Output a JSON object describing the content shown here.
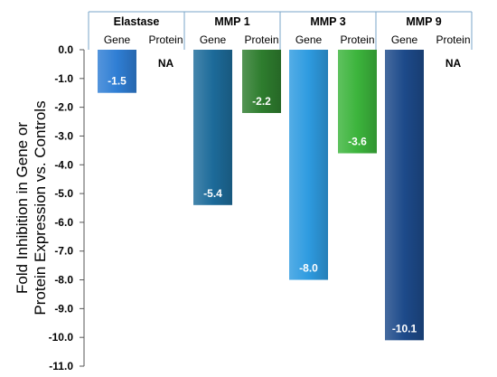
{
  "chart_data": {
    "type": "bar",
    "ylabel_lines": [
      "Fold Inhibition in Gene or",
      "Protein Expression vs. Controls"
    ],
    "ylim": [
      -11.0,
      0.0
    ],
    "yticks": [
      "0.0",
      "-1.0",
      "-2.0",
      "-3.0",
      "-4.0",
      "-5.0",
      "-6.0",
      "-7.0",
      "-8.0",
      "-9.0",
      "-10.0",
      "-11.0"
    ],
    "grid": false,
    "groups": [
      {
        "name": "Elastase",
        "bars": [
          {
            "label": "Gene",
            "value": -1.5,
            "text": "-1.5",
            "color": "#2f7ed4"
          },
          {
            "label": "Protein",
            "value": null,
            "text": "NA",
            "color": "#2e9a2e"
          }
        ]
      },
      {
        "name": "MMP 1",
        "bars": [
          {
            "label": "Gene",
            "value": -5.4,
            "text": "-5.4",
            "color": "#1d6b9a"
          },
          {
            "label": "Protein",
            "value": -2.2,
            "text": "-2.2",
            "color": "#2e7d2e"
          }
        ]
      },
      {
        "name": "MMP 3",
        "bars": [
          {
            "label": "Gene",
            "value": -8.0,
            "text": "-8.0",
            "color": "#2e9be0"
          },
          {
            "label": "Protein",
            "value": -3.6,
            "text": "-3.6",
            "color": "#3cb43c"
          }
        ]
      },
      {
        "name": "MMP 9",
        "bars": [
          {
            "label": "Gene",
            "value": -10.1,
            "text": "-10.1",
            "color": "#1d4a8a"
          },
          {
            "label": "Protein",
            "value": null,
            "text": "NA",
            "color": "#2e9a2e"
          }
        ]
      }
    ]
  }
}
